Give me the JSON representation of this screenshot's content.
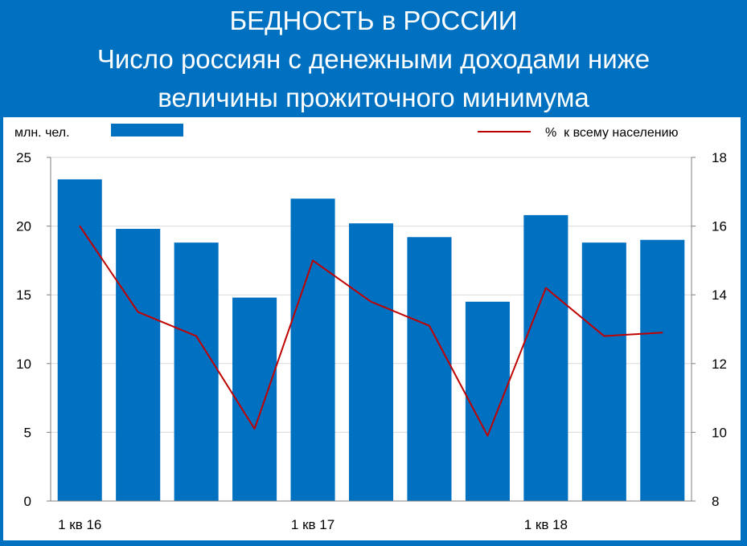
{
  "header": {
    "title": "БЕДНОСТЬ в РОССИИ",
    "subtitle_line1": "Число россиян с денежными доходами ниже",
    "subtitle_line2": "величины прожиточного минимума"
  },
  "colors": {
    "background": "#0070C0",
    "bar": "#0070C0",
    "line": "#C00000",
    "panel": "#FFFFFF",
    "grid": "#D9D9D9"
  },
  "chart_data": {
    "type": "bar",
    "title": "Число россиян с денежными доходами ниже величины прожиточного минимума",
    "left_axis_unit": "млн. чел.",
    "legend": {
      "bar_label": "",
      "line_label": "%  к всему населению"
    },
    "categories": [
      "1 кв 16",
      "",
      "",
      "",
      "1 кв 17",
      "",
      "",
      "",
      "1 кв 18",
      "",
      ""
    ],
    "x_tick_labels": [
      "1 кв 16",
      "1 кв 17",
      "1 кв 18"
    ],
    "series": [
      {
        "name": "млн. чел.",
        "type": "bar",
        "axis": "left",
        "values": [
          23.4,
          19.8,
          18.8,
          14.8,
          22.0,
          20.2,
          19.2,
          14.5,
          20.8,
          18.8,
          19.0
        ]
      },
      {
        "name": "%  к всему населению",
        "type": "line",
        "axis": "right",
        "values": [
          16.0,
          13.5,
          12.8,
          10.1,
          15.0,
          13.8,
          13.1,
          9.9,
          14.2,
          12.8,
          12.9
        ]
      }
    ],
    "ylim_left": [
      0,
      25
    ],
    "yticks_left": [
      0,
      5,
      10,
      15,
      20,
      25
    ],
    "ylim_right": [
      8,
      18
    ],
    "yticks_right": [
      8,
      10,
      12,
      14,
      16,
      18
    ],
    "grid": true,
    "legend_position": "top"
  }
}
